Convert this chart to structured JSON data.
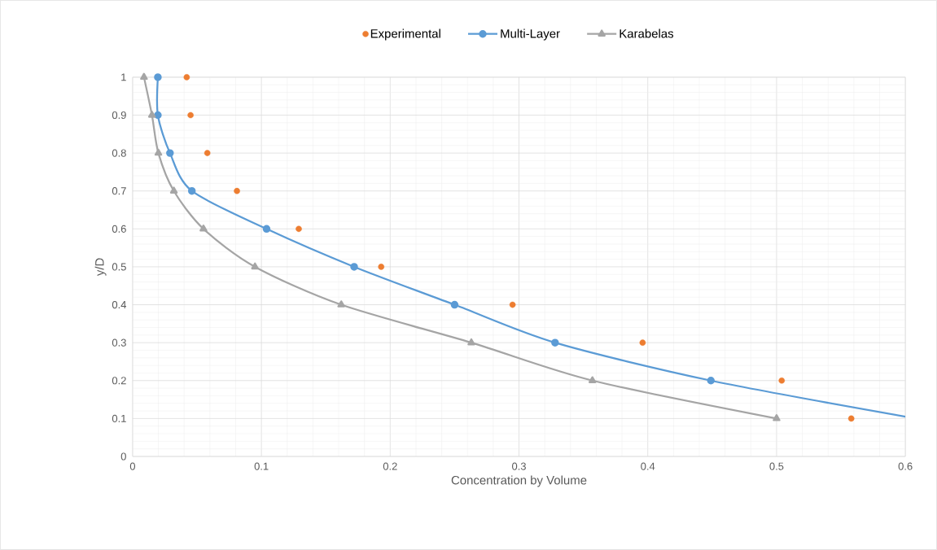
{
  "chart_data": {
    "type": "line",
    "xlabel": "Concentration by Volume",
    "ylabel": "y/D",
    "xlim": [
      0,
      0.6
    ],
    "ylim": [
      0,
      1
    ],
    "xticks": [
      0,
      0.1,
      0.2,
      0.3,
      0.4,
      0.5,
      0.6
    ],
    "yticks": [
      0,
      0.1,
      0.2,
      0.3,
      0.4,
      0.5,
      0.6,
      0.7,
      0.8,
      0.9,
      1
    ],
    "grid": true,
    "legend": "top",
    "series": [
      {
        "name": "Experimental",
        "type": "scatter",
        "marker": "circle",
        "color": "#ed7d31",
        "x": [
          0.042,
          0.045,
          0.058,
          0.081,
          0.129,
          0.193,
          0.295,
          0.396,
          0.504,
          0.558
        ],
        "values": [
          1,
          0.9,
          0.8,
          0.7,
          0.6,
          0.5,
          0.4,
          0.3,
          0.2,
          0.1
        ]
      },
      {
        "name": "Multi-Layer",
        "marker": "circle",
        "color": "#5b9bd5",
        "x": [
          0.0196,
          0.0196,
          0.029,
          0.046,
          0.104,
          0.172,
          0.25,
          0.328,
          0.449,
          0.6
        ],
        "values": [
          1,
          0.9,
          0.8,
          0.7,
          0.6,
          0.5,
          0.4,
          0.3,
          0.2,
          0.105
        ]
      },
      {
        "name": "Karabelas",
        "marker": "triangle",
        "color": "#a5a5a5",
        "x": [
          0.0088,
          0.015,
          0.02,
          0.032,
          0.055,
          0.095,
          0.162,
          0.263,
          0.357,
          0.5
        ],
        "values": [
          1,
          0.9,
          0.8,
          0.7,
          0.6,
          0.5,
          0.4,
          0.3,
          0.2,
          0.1
        ]
      }
    ]
  }
}
